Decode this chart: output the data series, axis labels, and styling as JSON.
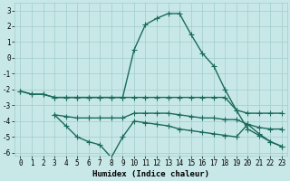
{
  "xlabel": "Humidex (Indice chaleur)",
  "xlim": [
    -0.5,
    23.5
  ],
  "ylim": [
    -6.2,
    3.5
  ],
  "bg_color": "#c8e8e8",
  "grid_color": "#a0cccc",
  "line_color": "#1a6b5a",
  "line_width": 1.0,
  "marker": "+",
  "marker_size": 4,
  "marker_edge_width": 0.8,
  "yticks": [
    -6,
    -5,
    -4,
    -3,
    -2,
    -1,
    0,
    1,
    2,
    3
  ],
  "xticks": [
    0,
    1,
    2,
    3,
    4,
    5,
    6,
    7,
    8,
    9,
    10,
    11,
    12,
    13,
    14,
    15,
    16,
    17,
    18,
    19,
    20,
    21,
    22,
    23
  ],
  "lines": [
    {
      "x": [
        0,
        1,
        2,
        3,
        4,
        5,
        6,
        7,
        8,
        9,
        10,
        11,
        12,
        13,
        14,
        15,
        16,
        17,
        18,
        19,
        20,
        21,
        22,
        23
      ],
      "y": [
        -2.1,
        -2.3,
        -2.3,
        -2.5,
        -2.5,
        -2.5,
        -2.5,
        -2.5,
        -2.5,
        -2.5,
        0.5,
        2.1,
        2.5,
        2.8,
        2.8,
        1.5,
        0.3,
        -0.5,
        -2.0,
        -3.3,
        -4.5,
        -4.9,
        -5.3,
        -5.6
      ]
    },
    {
      "x": [
        0,
        1,
        2,
        3,
        4,
        5,
        6,
        7,
        8,
        9,
        10,
        11,
        12,
        13,
        14,
        15,
        16,
        17,
        18,
        19,
        20,
        21,
        22,
        23
      ],
      "y": [
        -2.1,
        -2.3,
        -2.3,
        -2.5,
        -2.5,
        -2.5,
        -2.5,
        -2.5,
        -2.5,
        -2.5,
        -2.5,
        -2.5,
        -2.5,
        -2.5,
        -2.5,
        -2.5,
        -2.5,
        -2.5,
        -2.5,
        -3.3,
        -3.5,
        -3.5,
        -3.5,
        -3.5
      ]
    },
    {
      "x": [
        3,
        4,
        5,
        6,
        7,
        8,
        9,
        10,
        11,
        12,
        13,
        14,
        15,
        16,
        17,
        18,
        19,
        20,
        21,
        22,
        23
      ],
      "y": [
        -3.6,
        -3.7,
        -3.8,
        -3.8,
        -3.8,
        -3.8,
        -3.8,
        -3.5,
        -3.5,
        -3.5,
        -3.5,
        -3.6,
        -3.7,
        -3.8,
        -3.8,
        -3.9,
        -3.9,
        -4.2,
        -4.4,
        -4.5,
        -4.5
      ]
    },
    {
      "x": [
        3,
        4,
        5,
        6,
        7,
        8,
        9,
        10,
        11,
        12,
        13,
        14,
        15,
        16,
        17,
        18,
        19,
        20,
        21,
        22,
        23
      ],
      "y": [
        -3.6,
        -4.3,
        -5.0,
        -5.3,
        -5.5,
        -6.3,
        -5.0,
        -4.0,
        -4.1,
        -4.2,
        -4.3,
        -4.5,
        -4.6,
        -4.7,
        -4.8,
        -4.9,
        -5.0,
        -4.2,
        -4.8,
        -5.3,
        -5.6
      ]
    }
  ]
}
